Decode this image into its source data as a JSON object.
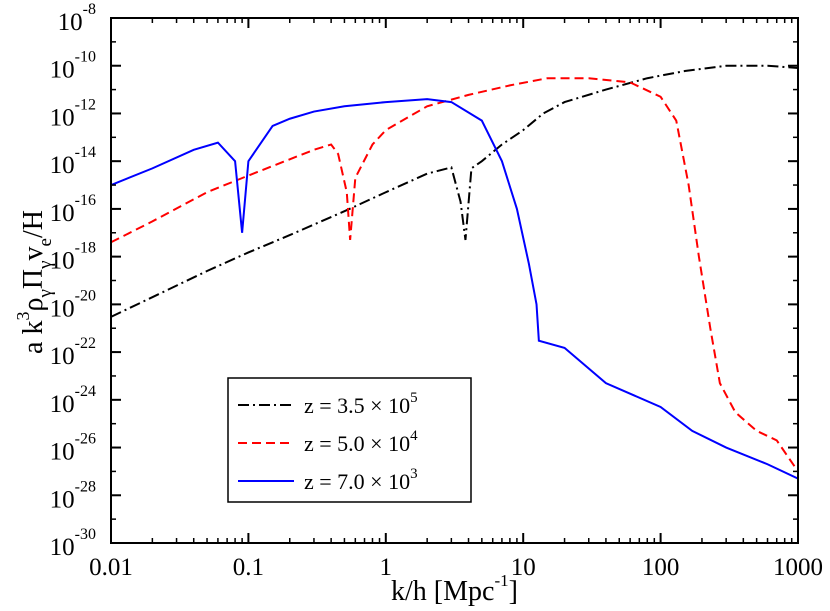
{
  "chart_data": {
    "type": "line",
    "title": "",
    "xlabel": "k/h [Mpc",
    "xlabel_sup": "-1",
    "xlabel_tail": "]",
    "ylabel_parts": [
      "a k",
      "3",
      "ρ",
      "γ",
      "Π",
      "γ",
      "v",
      "e",
      "/H"
    ],
    "xscale": "log",
    "yscale": "log",
    "xlim": [
      0.01,
      1000
    ],
    "ylim": [
      1e-30,
      1e-08
    ],
    "grid": false,
    "legend_position": "bottom-left",
    "x_ticks": [
      {
        "value": 0.01,
        "label": "0.01"
      },
      {
        "value": 0.1,
        "label": "0.1"
      },
      {
        "value": 1,
        "label": "1"
      },
      {
        "value": 10,
        "label": "10"
      },
      {
        "value": 100,
        "label": "100"
      },
      {
        "value": 1000,
        "label": "1000"
      }
    ],
    "y_ticks": [
      {
        "value": 1e-30,
        "base": "10",
        "exp": "-30"
      },
      {
        "value": 1e-28,
        "base": "10",
        "exp": "-28"
      },
      {
        "value": 1e-26,
        "base": "10",
        "exp": "-26"
      },
      {
        "value": 1e-24,
        "base": "10",
        "exp": "-24"
      },
      {
        "value": 1e-22,
        "base": "10",
        "exp": "-22"
      },
      {
        "value": 1e-20,
        "base": "10",
        "exp": "-20"
      },
      {
        "value": 1e-18,
        "base": "10",
        "exp": "-18"
      },
      {
        "value": 1e-16,
        "base": "10",
        "exp": "-16"
      },
      {
        "value": 1e-14,
        "base": "10",
        "exp": "-14"
      },
      {
        "value": 1e-12,
        "base": "10",
        "exp": "-12"
      },
      {
        "value": 1e-10,
        "base": "10",
        "exp": "-10"
      },
      {
        "value": 1e-08,
        "base": "10",
        "exp": "-8"
      }
    ],
    "series": [
      {
        "name": "z = 3.5 × 10",
        "name_exp": "5",
        "color": "#000000",
        "dash": "dashdot",
        "points": [
          [
            0.01,
            3e-21
          ],
          [
            0.02,
            2e-20
          ],
          [
            0.05,
            2.5e-19
          ],
          [
            0.1,
            1.5e-18
          ],
          [
            0.2,
            8e-18
          ],
          [
            0.5,
            8e-17
          ],
          [
            1,
            5e-16
          ],
          [
            2,
            3e-15
          ],
          [
            3,
            5.5e-15
          ],
          [
            3.5,
            2e-16
          ],
          [
            3.8,
            5e-18
          ],
          [
            4.2,
            5e-15
          ],
          [
            5,
            1e-14
          ],
          [
            7,
            5e-14
          ],
          [
            10,
            2e-13
          ],
          [
            14,
            1e-12
          ],
          [
            20,
            3e-12
          ],
          [
            40,
            1e-11
          ],
          [
            80,
            3e-11
          ],
          [
            150,
            6e-11
          ],
          [
            300,
            1e-10
          ],
          [
            600,
            1e-10
          ],
          [
            1000,
            8e-11
          ]
        ]
      },
      {
        "name": "z = 5.0 × 10",
        "name_exp": "4",
        "color": "#ff0000",
        "dash": "dashed",
        "points": [
          [
            0.01,
            4e-18
          ],
          [
            0.02,
            3e-17
          ],
          [
            0.05,
            5e-16
          ],
          [
            0.1,
            2.5e-15
          ],
          [
            0.2,
            1.2e-14
          ],
          [
            0.3,
            3e-14
          ],
          [
            0.4,
            5e-14
          ],
          [
            0.45,
            2e-14
          ],
          [
            0.52,
            5e-16
          ],
          [
            0.55,
            5e-18
          ],
          [
            0.6,
            2e-15
          ],
          [
            0.8,
            5e-14
          ],
          [
            1,
            2e-13
          ],
          [
            2,
            2e-12
          ],
          [
            4,
            6e-12
          ],
          [
            8,
            1.5e-11
          ],
          [
            15,
            3e-11
          ],
          [
            30,
            3e-11
          ],
          [
            60,
            2e-11
          ],
          [
            100,
            5e-12
          ],
          [
            130,
            5e-13
          ],
          [
            160,
            1e-15
          ],
          [
            190,
            1e-18
          ],
          [
            230,
            1e-21
          ],
          [
            270,
            5e-24
          ],
          [
            350,
            3e-25
          ],
          [
            500,
            5e-26
          ],
          [
            700,
            2e-26
          ],
          [
            1000,
            1e-27
          ]
        ]
      },
      {
        "name": "z = 7.0 × 10",
        "name_exp": "3",
        "color": "#0000ff",
        "dash": "solid",
        "points": [
          [
            0.01,
            1e-15
          ],
          [
            0.02,
            5e-15
          ],
          [
            0.04,
            3e-14
          ],
          [
            0.06,
            6e-14
          ],
          [
            0.08,
            1e-14
          ],
          [
            0.09,
            1e-17
          ],
          [
            0.1,
            1e-14
          ],
          [
            0.15,
            3e-13
          ],
          [
            0.2,
            6e-13
          ],
          [
            0.3,
            1.2e-12
          ],
          [
            0.5,
            2e-12
          ],
          [
            1,
            3e-12
          ],
          [
            2,
            4e-12
          ],
          [
            3,
            3e-12
          ],
          [
            5,
            5e-13
          ],
          [
            7,
            1e-14
          ],
          [
            9,
            1e-16
          ],
          [
            11,
            5e-19
          ],
          [
            12.5,
            1e-20
          ],
          [
            13,
            3e-22
          ],
          [
            20,
            1.5e-22
          ],
          [
            40,
            5e-24
          ],
          [
            100,
            5e-25
          ],
          [
            170,
            5e-26
          ],
          [
            300,
            1e-26
          ],
          [
            600,
            2e-27
          ],
          [
            1000,
            5e-28
          ]
        ]
      }
    ]
  }
}
